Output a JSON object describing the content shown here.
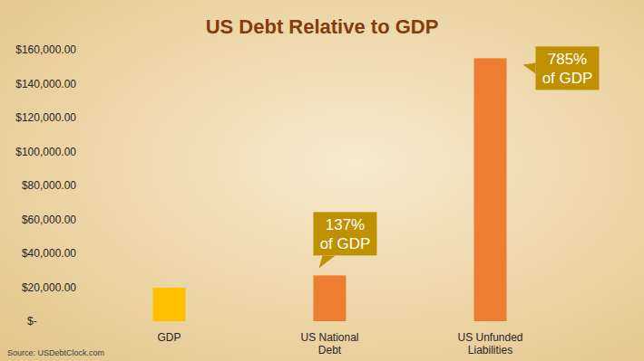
{
  "chart_data": {
    "type": "bar",
    "title": "US Debt Relative to GDP",
    "categories": [
      "GDP",
      "US National Debt",
      "US Unfunded Liabilities"
    ],
    "values": [
      19700,
      27000,
      155000
    ],
    "colors": [
      "#ffc000",
      "#ed7d31",
      "#ed7d31"
    ],
    "ylim": [
      0,
      160000
    ],
    "yticks": [
      {
        "value": 0,
        "label": "$-"
      },
      {
        "value": 20000,
        "label": "$20,000.00"
      },
      {
        "value": 40000,
        "label": "$40,000.00"
      },
      {
        "value": 60000,
        "label": "$60,000.00"
      },
      {
        "value": 80000,
        "label": "$80,000.00"
      },
      {
        "value": 100000,
        "label": "$100,000.00"
      },
      {
        "value": 120000,
        "label": "$120,000.00"
      },
      {
        "value": 140000,
        "label": "$140,000.00"
      },
      {
        "value": 160000,
        "label": "$160,000.00"
      }
    ],
    "grid": false,
    "annotations": [
      {
        "category": "US National Debt",
        "text": "137% of GDP"
      },
      {
        "category": "US Unfunded Liabilities",
        "text": "785% of GDP"
      }
    ],
    "source": "Source: USDebtClock.com"
  }
}
